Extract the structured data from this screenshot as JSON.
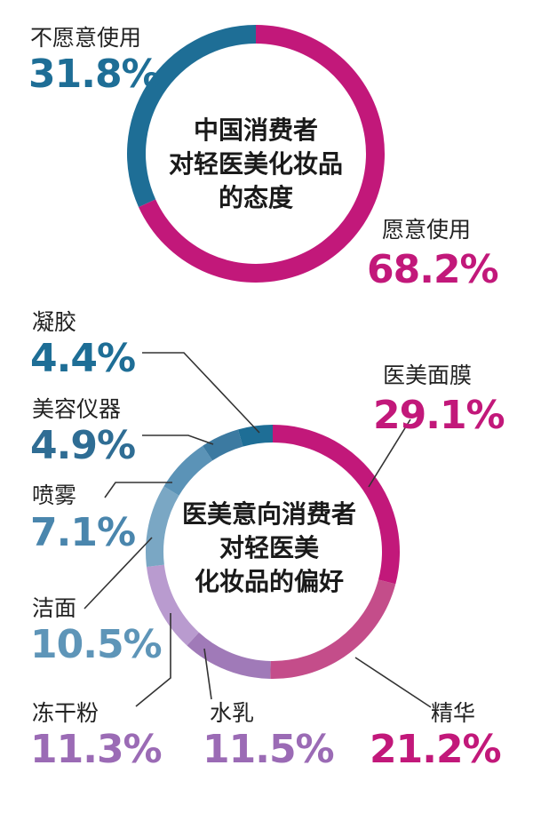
{
  "chart_data": [
    {
      "type": "pie",
      "title_lines": [
        "中国消费者",
        "对轻医美化妆品",
        "的态度"
      ],
      "slices": [
        {
          "label": "不愿意使用",
          "value_text": "31.8%",
          "value": 31.8,
          "color": "#1e6e96"
        },
        {
          "label": "愿意使用",
          "value_text": "68.2%",
          "value": 68.2,
          "color": "#c2187a"
        }
      ]
    },
    {
      "type": "pie",
      "title_lines": [
        "医美意向消费者",
        "对轻医美",
        "化妆品的偏好"
      ],
      "slices": [
        {
          "label": "医美面膜",
          "value_text": "29.1%",
          "value": 29.1,
          "color": "#c2187a",
          "text_color": "#c2187a"
        },
        {
          "label": "精华",
          "value_text": "21.2%",
          "value": 21.2,
          "color": "#c44d8a",
          "text_color": "#c2187a"
        },
        {
          "label": "水乳",
          "value_text": "11.5%",
          "value": 11.5,
          "color": "#a07ab8",
          "text_color": "#9b6bb5"
        },
        {
          "label": "冻干粉",
          "value_text": "11.3%",
          "value": 11.3,
          "color": "#b99bcf",
          "text_color": "#9b6bb5"
        },
        {
          "label": "洁面",
          "value_text": "10.5%",
          "value": 10.5,
          "color": "#7aa7c4",
          "text_color": "#5e95b8"
        },
        {
          "label": "喷雾",
          "value_text": "7.1%",
          "value": 7.1,
          "color": "#5b93b7",
          "text_color": "#4a86ad"
        },
        {
          "label": "美容仪器",
          "value_text": "4.9%",
          "value": 4.9,
          "color": "#3c7aa1",
          "text_color": "#2f6d94"
        },
        {
          "label": "凝胶",
          "value_text": "4.4%",
          "value": 4.4,
          "color": "#1e6e96",
          "text_color": "#1e6e96"
        }
      ]
    }
  ]
}
